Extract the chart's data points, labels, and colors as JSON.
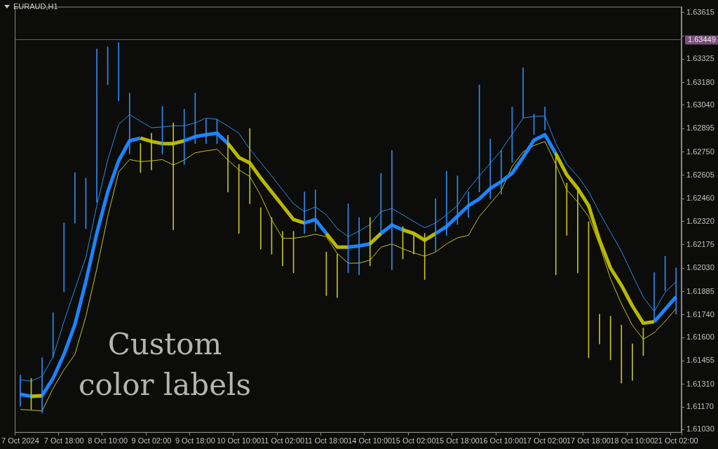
{
  "chart_data": {
    "type": "bar",
    "title": "EURAUD,H1",
    "annotations": [
      "Custom color labels"
    ],
    "categories": [
      "7 Oct 2024",
      null,
      null,
      null,
      "7 Oct 18:00",
      null,
      null,
      null,
      "8 Oct 10:00",
      null,
      null,
      null,
      "9 Oct 02:00",
      null,
      null,
      null,
      "9 Oct 18:00",
      null,
      null,
      null,
      "10 Oct 10:00",
      null,
      null,
      null,
      "11 Oct 02:00",
      null,
      null,
      null,
      "11 Oct 18:00",
      null,
      null,
      null,
      "14 Oct 10:00",
      null,
      null,
      null,
      "15 Oct 02:00",
      null,
      null,
      null,
      "15 Oct 18:00",
      null,
      null,
      null,
      "16 Oct 10:00",
      null,
      null,
      null,
      "17 Oct 02:00",
      null,
      null,
      null,
      "17 Oct 18:00",
      null,
      null,
      null,
      "18 Oct 10:00",
      null,
      null,
      null,
      "21 Oct 02:00"
    ],
    "ylim": [
      1.6101,
      1.6365
    ],
    "yticks": [
      1.63615,
      {
        "value": 1.6347,
        "label": null
      },
      1.63325,
      {
        "value": 1.6318,
        "label": "1.63180"
      },
      {
        "value": 1.6304,
        "label": "1.63040"
      },
      1.62895,
      {
        "value": 1.6275,
        "label": "1.62750"
      },
      1.62605,
      {
        "value": 1.6246,
        "label": "1.62460"
      },
      {
        "value": 1.6232,
        "label": "1.62320"
      },
      1.62175,
      {
        "value": 1.6203,
        "label": "1.62030"
      },
      1.61885,
      {
        "value": 1.6174,
        "label": "1.61740"
      },
      {
        "value": 1.616,
        "label": "1.61600"
      },
      1.61455,
      {
        "value": 1.6131,
        "label": "1.61310"
      },
      {
        "value": 1.6117,
        "label": "1.61170"
      },
      {
        "value": 1.6103,
        "label": "1.61030"
      }
    ],
    "ref_lines": [
      {
        "axis": "y",
        "value": 1.63449,
        "label": "1.63449",
        "color": "#7a4f7a"
      }
    ],
    "series": [
      {
        "base": [
          1.61175,
          1.61154,
          1.61133,
          1.61475,
          1.61882,
          1.6231,
          1.62275,
          1.62438,
          1.63166,
          1.63067,
          1.62738,
          1.62622,
          1.62639,
          1.62738,
          1.62267,
          1.62673,
          1.62802,
          1.62802,
          1.62802,
          1.62502,
          1.62245,
          1.62429,
          1.62147,
          1.62117,
          1.62044,
          1.62001,
          1.62245,
          1.62258,
          1.6186,
          1.61847,
          1.62001,
          1.61989,
          1.62044,
          1.62245,
          1.62019,
          1.62087,
          1.62117,
          1.61959,
          1.6213,
          1.62233,
          1.62301,
          1.62344,
          1.62502,
          1.62459,
          1.62489,
          1.62686,
          1.6296,
          1.62857,
          1.62887,
          1.61989,
          1.62233,
          1.62001,
          1.61475,
          1.61561,
          1.61462,
          1.61317,
          1.61334,
          1.61488,
          1.61702,
          1.6189,
          1.61745
        ],
        "values": [
          0.00193,
          0.00193,
          0.00342,
          0.00278,
          0.00428,
          0.00312,
          0.00312,
          0.0095,
          0.00235,
          0.0036,
          0.00377,
          0.0018,
          0.00227,
          0.00295,
          0.00663,
          0.00342,
          0.00312,
          0.0015,
          0.0015,
          0.00351,
          0.00428,
          0.00467,
          0.00257,
          0.00227,
          0.00214,
          0.00257,
          0.00257,
          0.00257,
          0.0027,
          0.0027,
          0.00428,
          0.00355,
          0.003,
          0.00372,
          0.0074,
          0.00201,
          0.00128,
          0.00287,
          0.0033,
          0.00398,
          0.003,
          0.00158,
          0.00663,
          0.00372,
          0.0027,
          0.00342,
          0.00312,
          0.00128,
          0.00141,
          0.00758,
          0.00325,
          0.00531,
          0.00843,
          0.00184,
          0.0027,
          0.0036,
          0.00227,
          0.00171,
          0.003,
          0.00214,
          0.00287
        ],
        "colors": [
          "#2b8cf0",
          "#c4c41c",
          "#2b8cf0",
          "#2b8cf0",
          "#2b8cf0",
          "#2b8cf0",
          "#2b8cf0",
          "#2b8cf0",
          "#2b8cf0",
          "#2b8cf0",
          "#2b8cf0",
          "#c4c41c",
          "#c4c41c",
          "#2b8cf0",
          "#c4c41c",
          "#2b8cf0",
          "#2b8cf0",
          "#2b8cf0",
          "#2b8cf0",
          "#c4c41c",
          "#c4c41c",
          "#c4c41c",
          "#c4c41c",
          "#c4c41c",
          "#c4c41c",
          "#c4c41c",
          "#2b8cf0",
          "#2b8cf0",
          "#c4c41c",
          "#c4c41c",
          "#2b8cf0",
          "#2b8cf0",
          "#c4c41c",
          "#2b8cf0",
          "#2b8cf0",
          "#c4c41c",
          "#c4c41c",
          "#c4c41c",
          "#2b8cf0",
          "#2b8cf0",
          "#2b8cf0",
          "#2b8cf0",
          "#2b8cf0",
          "#2b8cf0",
          "#2b8cf0",
          "#2b8cf0",
          "#2b8cf0",
          "#2b8cf0",
          "#2b8cf0",
          "#c4c41c",
          "#c4c41c",
          "#c4c41c",
          "#c4c41c",
          "#c4c41c",
          "#c4c41c",
          "#c4c41c",
          "#c4c41c",
          "#c4c41c",
          "#2b8cf0",
          "#2b8cf0",
          "#2b8cf0"
        ]
      },
      {
        "type": "line",
        "color": "#b8b800",
        "values": [
          null,
          1.61235,
          1.6124,
          null,
          null,
          null,
          null,
          null,
          null,
          null,
          null,
          1.62836,
          1.62815,
          1.62802,
          1.62802,
          1.62819,
          null,
          null,
          null,
          1.62802,
          1.62716,
          1.62682,
          1.62588,
          1.62502,
          1.62417,
          1.62331,
          1.6231,
          null,
          1.62245,
          1.6216,
          1.6216,
          null,
          1.62181,
          1.62245,
          null,
          1.62267,
          1.62245,
          1.62203,
          1.62245,
          null,
          null,
          null,
          null,
          null,
          null,
          null,
          null,
          null,
          null,
          1.62738,
          1.62609,
          1.62524,
          1.62417,
          1.62203,
          1.62031,
          1.61924,
          1.61796,
          1.61689,
          1.61698,
          null,
          null
        ]
      },
      {
        "type": "line",
        "color": "#1a84ff",
        "values": [
          1.61248,
          1.61235,
          1.6124,
          1.61347,
          1.61496,
          1.6168,
          1.61946,
          1.62245,
          1.62502,
          1.62695,
          1.62819,
          1.62836,
          null,
          null,
          null,
          1.62819,
          1.62845,
          1.62857,
          1.62866,
          1.62802,
          null,
          null,
          null,
          null,
          null,
          null,
          1.6231,
          1.62331,
          1.62245,
          null,
          1.6216,
          1.62168,
          1.62181,
          1.62245,
          1.62297,
          1.62267,
          null,
          null,
          1.62245,
          1.62288,
          1.62352,
          1.62417,
          1.62459,
          1.62524,
          1.62566,
          1.62618,
          1.62716,
          1.62823,
          1.62857,
          1.62738,
          null,
          null,
          null,
          null,
          null,
          null,
          null,
          null,
          1.61698,
          1.61775,
          1.61852
        ]
      },
      {
        "type": "line",
        "color": "#2b8cf0",
        "values": [
          1.61338,
          1.6133,
          1.6136,
          1.6148,
          1.617,
          1.619,
          1.62096,
          1.62417,
          1.627,
          1.6292,
          1.62982,
          1.6294,
          1.629,
          1.62905,
          1.62912,
          1.62912,
          1.6293,
          1.6296,
          1.62952,
          1.6291,
          1.62866,
          1.62768,
          1.62685,
          1.62601,
          1.62515,
          1.62429,
          1.6238,
          1.6241,
          1.6236,
          1.62275,
          1.62225,
          1.6226,
          1.623,
          1.6238,
          1.624,
          1.6236,
          1.6232,
          1.6228,
          1.6231,
          1.6236,
          1.6242,
          1.6252,
          1.62601,
          1.6268,
          1.6276,
          1.6286,
          1.6296,
          1.6297,
          1.62973,
          1.62802,
          1.62673,
          1.626,
          1.62505,
          1.62374,
          1.62254,
          1.62134,
          1.6199,
          1.6185,
          1.61762,
          1.6188,
          1.61946
        ]
      },
      {
        "type": "line",
        "color": "#c4c41c",
        "values": [
          1.61154,
          1.6115,
          1.61145,
          1.61285,
          1.614,
          1.61496,
          1.6173,
          1.62025,
          1.6235,
          1.62625,
          1.62703,
          1.6269,
          1.62695,
          1.62703,
          1.62669,
          1.627,
          1.62745,
          1.62757,
          1.62766,
          1.627,
          1.62639,
          1.62598,
          1.6248,
          1.6233,
          1.62215,
          1.62215,
          1.62225,
          1.6224,
          1.62225,
          1.6212,
          1.62061,
          1.62061,
          1.6208,
          1.6216,
          1.6218,
          1.6215,
          1.62125,
          1.62104,
          1.6213,
          1.6218,
          1.62218,
          1.62233,
          1.6235,
          1.6243,
          1.6251,
          1.62661,
          1.6275,
          1.6279,
          1.62815,
          1.62673,
          1.62515,
          1.6244,
          1.6235,
          1.62173,
          1.61965,
          1.6181,
          1.61676,
          1.6159,
          1.6163,
          1.617,
          1.6178
        ]
      }
    ]
  }
}
